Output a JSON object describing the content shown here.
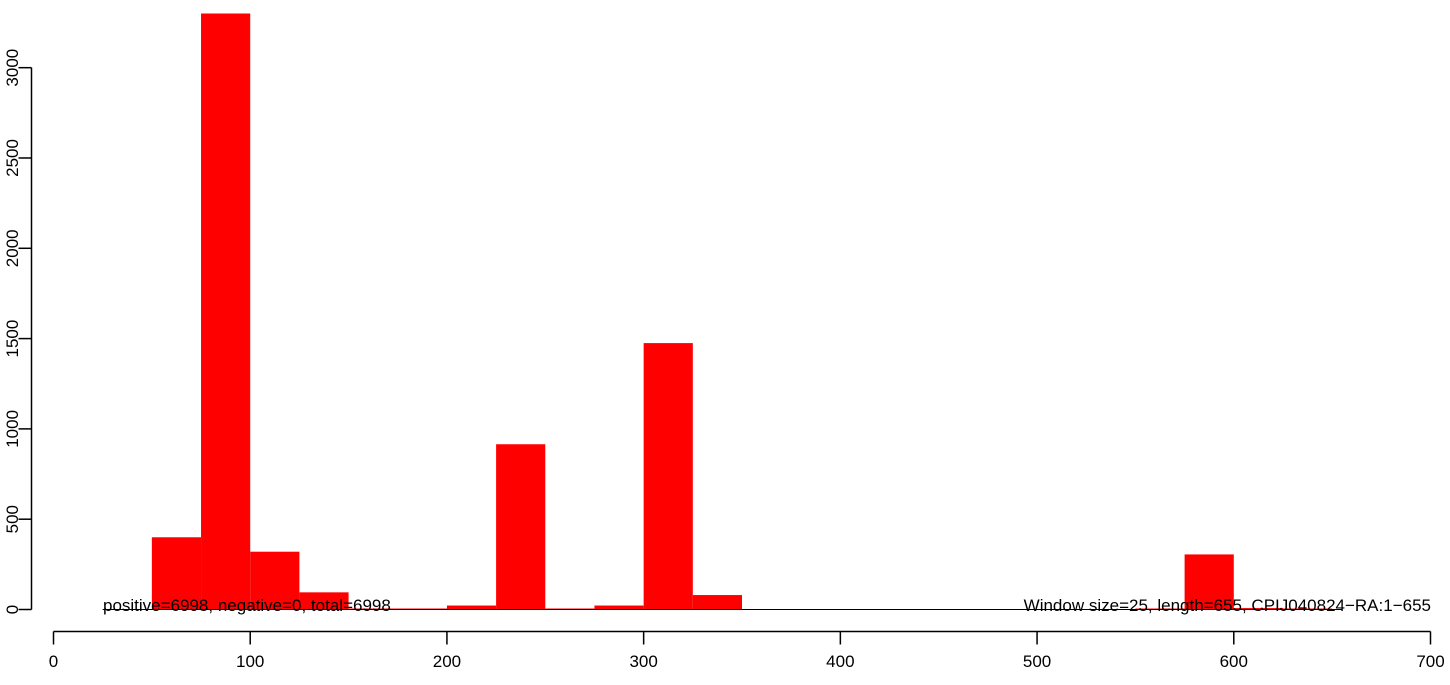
{
  "chart_data": {
    "type": "bar",
    "bar_color": "#ff0000",
    "baseline_color": "#000000",
    "bin_width": 25,
    "bins": [
      {
        "start": 50,
        "value": 400
      },
      {
        "start": 75,
        "value": 3300
      },
      {
        "start": 100,
        "value": 320
      },
      {
        "start": 125,
        "value": 95
      },
      {
        "start": 150,
        "value": 2
      },
      {
        "start": 175,
        "value": 1
      },
      {
        "start": 200,
        "value": 22
      },
      {
        "start": 225,
        "value": 915
      },
      {
        "start": 250,
        "value": 5
      },
      {
        "start": 275,
        "value": 22
      },
      {
        "start": 300,
        "value": 1475
      },
      {
        "start": 325,
        "value": 80
      },
      {
        "start": 550,
        "value": 2
      },
      {
        "start": 575,
        "value": 305
      },
      {
        "start": 600,
        "value": 8
      },
      {
        "start": 625,
        "value": 3
      }
    ],
    "baseline_range": [
      25,
      655
    ],
    "xlim": [
      0,
      700
    ],
    "ylim": [
      0,
      3300
    ],
    "x_ticks": [
      0,
      100,
      200,
      300,
      400,
      500,
      600,
      700
    ],
    "y_ticks": [
      0,
      500,
      1000,
      1500,
      2000,
      2500,
      3000
    ],
    "annotations": {
      "left": "positive=6998, negative=0, total=6998",
      "right": "Window size=25, length=655, CPIJ040824−RA:1−655"
    }
  }
}
